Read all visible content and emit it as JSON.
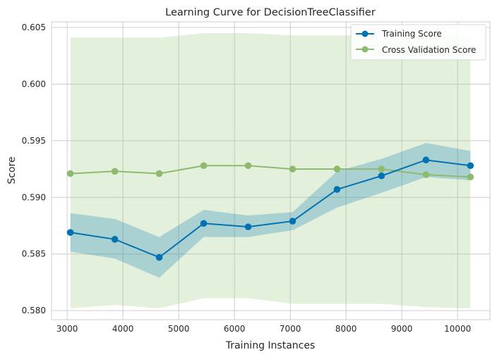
{
  "chart_data": {
    "type": "line",
    "title": "Learning Curve for DecisionTreeClassifier",
    "xlabel": "Training Instances",
    "ylabel": "Score",
    "xlim": [
      2720,
      10580
    ],
    "ylim": [
      0.5792,
      0.6055
    ],
    "xticks": [
      3000,
      4000,
      5000,
      6000,
      7000,
      8000,
      9000,
      10000
    ],
    "yticks": [
      0.58,
      0.585,
      0.59,
      0.595,
      0.6,
      0.605
    ],
    "grid": true,
    "legend_position": "top-right",
    "x": [
      3057,
      3854,
      4651,
      5448,
      6245,
      7042,
      7839,
      8636,
      9433,
      10230
    ],
    "series": [
      {
        "name": "Training Score",
        "color": "#0072B2",
        "band_color": "#0072B2",
        "values": [
          0.5869,
          0.5863,
          0.5847,
          0.5877,
          0.5874,
          0.5879,
          0.5907,
          0.5919,
          0.5933,
          0.5928
        ],
        "upper": [
          0.5886,
          0.5881,
          0.5865,
          0.5889,
          0.5884,
          0.5887,
          0.5923,
          0.5934,
          0.5948,
          0.5941
        ],
        "lower": [
          0.5852,
          0.5846,
          0.5829,
          0.5865,
          0.5865,
          0.5871,
          0.5891,
          0.5904,
          0.5918,
          0.5915
        ]
      },
      {
        "name": "Cross Validation Score",
        "color": "#8EBA6E",
        "band_color": "#9CC882",
        "values": [
          0.5921,
          0.5923,
          0.5921,
          0.5928,
          0.5928,
          0.5925,
          0.5925,
          0.5925,
          0.592,
          0.5918
        ],
        "upper": [
          0.6041,
          0.6041,
          0.6041,
          0.6045,
          0.6045,
          0.6043,
          0.6043,
          0.6043,
          0.6042,
          0.6042
        ],
        "lower": [
          0.5802,
          0.5805,
          0.5802,
          0.5811,
          0.5811,
          0.5806,
          0.5806,
          0.5806,
          0.5803,
          0.5802
        ]
      }
    ]
  }
}
